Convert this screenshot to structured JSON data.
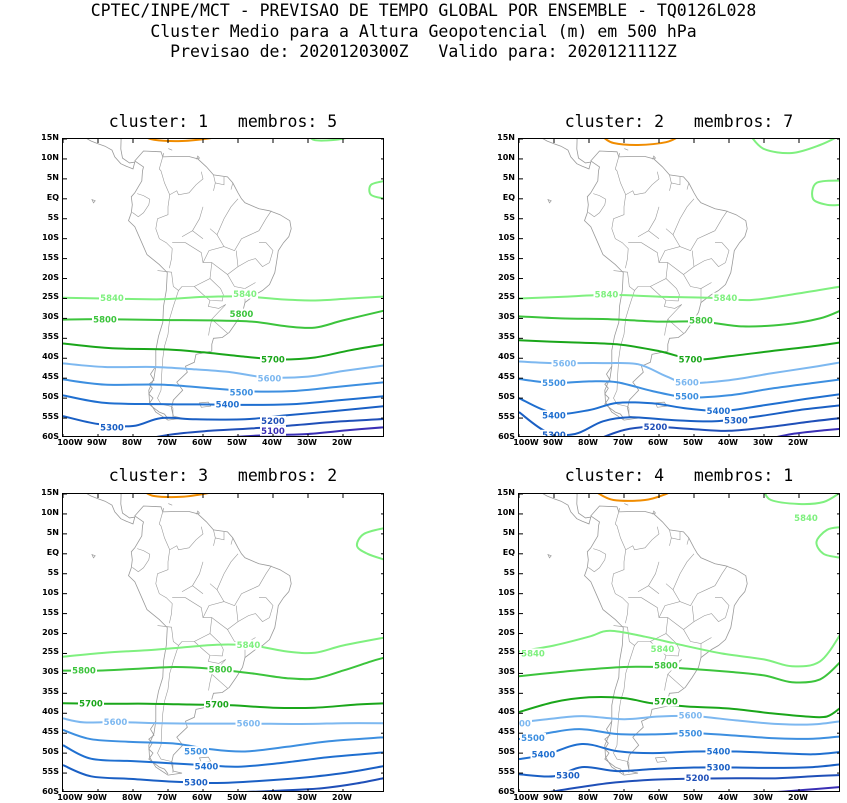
{
  "header": {
    "line1": "CPTEC/INPE/MCT - PREVISAO DE TEMPO GLOBAL POR ENSEMBLE - TQ0126L028",
    "line2": "Cluster Medio para a Altura Geopotencial (m) em 500 hPa",
    "line3": "Previsao de: 2020120300Z   Valido para: 2020121112Z"
  },
  "colors": {
    "c5100": "#3a2fb5",
    "c5200": "#1f4fb8",
    "c5300": "#1a5fc4",
    "c5400": "#1f6fd0",
    "c5500": "#3d8fe0",
    "c5600": "#7db8f0",
    "c5700": "#1aa61a",
    "c5800": "#3cc43c",
    "c5840": "#7ff07f",
    "orange": "#f08c00",
    "coast": "#9a9a9a"
  },
  "y_ticks": [
    "15N",
    "10N",
    "5N",
    "EQ",
    "5S",
    "10S",
    "15S",
    "20S",
    "25S",
    "30S",
    "35S",
    "40S",
    "45S",
    "50S",
    "55S",
    "60S"
  ],
  "x_ticks": [
    "100W",
    "90W",
    "80W",
    "70W",
    "60W",
    "50W",
    "40W",
    "30W",
    "20W"
  ],
  "panels": [
    {
      "title": "cluster: 1   membros: 5",
      "labels": [
        {
          "text": "5840",
          "lon": -86,
          "lat": -24.8,
          "c": "c5840"
        },
        {
          "text": "5840",
          "lon": -48,
          "lat": -23.8,
          "c": "c5840"
        },
        {
          "text": "5800",
          "lon": -88,
          "lat": -30.2,
          "c": "c5800"
        },
        {
          "text": "5800",
          "lon": -49,
          "lat": -28.8,
          "c": "c5800"
        },
        {
          "text": "5700",
          "lon": -40,
          "lat": -40.2,
          "c": "c5700"
        },
        {
          "text": "5600",
          "lon": -41,
          "lat": -45.0,
          "c": "c5600"
        },
        {
          "text": "5500",
          "lon": -49,
          "lat": -48.5,
          "c": "c5500"
        },
        {
          "text": "5400",
          "lon": -53,
          "lat": -51.5,
          "c": "c5400"
        },
        {
          "text": "5300",
          "lon": -86,
          "lat": -57.3,
          "c": "c5300"
        },
        {
          "text": "5200",
          "lon": -40,
          "lat": -55.7,
          "c": "c5200"
        },
        {
          "text": "5100",
          "lon": -40,
          "lat": -58.2,
          "c": "c5100"
        }
      ]
    },
    {
      "title": "cluster: 2   membros: 7",
      "labels": [
        {
          "text": "5840",
          "lon": -75,
          "lat": -24.0,
          "c": "c5840"
        },
        {
          "text": "5840",
          "lon": -41,
          "lat": -24.8,
          "c": "c5840"
        },
        {
          "text": "5800",
          "lon": -48,
          "lat": -30.5,
          "c": "c5800"
        },
        {
          "text": "5700",
          "lon": -51,
          "lat": -40.2,
          "c": "c5700"
        },
        {
          "text": "5600",
          "lon": -87,
          "lat": -41.2,
          "c": "c5600"
        },
        {
          "text": "5600",
          "lon": -52,
          "lat": -46.0,
          "c": "c5600"
        },
        {
          "text": "5500",
          "lon": -90,
          "lat": -46.2,
          "c": "c5500"
        },
        {
          "text": "5500",
          "lon": -52,
          "lat": -49.5,
          "c": "c5500"
        },
        {
          "text": "5400",
          "lon": -90,
          "lat": -54.3,
          "c": "c5400"
        },
        {
          "text": "5400",
          "lon": -43,
          "lat": -53.2,
          "c": "c5400"
        },
        {
          "text": "5300",
          "lon": -90,
          "lat": -59.2,
          "c": "c5300"
        },
        {
          "text": "5300",
          "lon": -38,
          "lat": -55.5,
          "c": "c5300"
        },
        {
          "text": "5200",
          "lon": -61,
          "lat": -57.2,
          "c": "c5200"
        }
      ]
    },
    {
      "title": "cluster: 3   membros: 2",
      "labels": [
        {
          "text": "5840",
          "lon": -47,
          "lat": -22.8,
          "c": "c5840"
        },
        {
          "text": "5800",
          "lon": -94,
          "lat": -29.2,
          "c": "c5800"
        },
        {
          "text": "5800",
          "lon": -55,
          "lat": -29.0,
          "c": "c5800"
        },
        {
          "text": "5700",
          "lon": -92,
          "lat": -37.5,
          "c": "c5700"
        },
        {
          "text": "5700",
          "lon": -56,
          "lat": -37.8,
          "c": "c5700"
        },
        {
          "text": "5600",
          "lon": -85,
          "lat": -42.2,
          "c": "c5600"
        },
        {
          "text": "5600",
          "lon": -47,
          "lat": -42.5,
          "c": "c5600"
        },
        {
          "text": "5500",
          "lon": -62,
          "lat": -49.5,
          "c": "c5500"
        },
        {
          "text": "5400",
          "lon": -59,
          "lat": -53.3,
          "c": "c5400"
        },
        {
          "text": "5300",
          "lon": -62,
          "lat": -57.3,
          "c": "c5300"
        }
      ]
    },
    {
      "title": "cluster: 4   membros: 1",
      "labels": [
        {
          "text": "5840",
          "lon": -18,
          "lat": 9.0,
          "c": "c5840"
        },
        {
          "text": "5840",
          "lon": -96,
          "lat": -25.0,
          "c": "c5840"
        },
        {
          "text": "5840",
          "lon": -59,
          "lat": -23.8,
          "c": "c5840"
        },
        {
          "text": "5800",
          "lon": -58,
          "lat": -28.0,
          "c": "c5800"
        },
        {
          "text": "5700",
          "lon": -58,
          "lat": -37.0,
          "c": "c5700"
        },
        {
          "text": "5600",
          "lon": -100,
          "lat": -42.5,
          "c": "c5600"
        },
        {
          "text": "5600",
          "lon": -51,
          "lat": -40.5,
          "c": "c5600"
        },
        {
          "text": "5500",
          "lon": -96,
          "lat": -46.2,
          "c": "c5500"
        },
        {
          "text": "5500",
          "lon": -51,
          "lat": -45.0,
          "c": "c5500"
        },
        {
          "text": "5400",
          "lon": -93,
          "lat": -50.3,
          "c": "c5400"
        },
        {
          "text": "5400",
          "lon": -43,
          "lat": -49.5,
          "c": "c5400"
        },
        {
          "text": "5300",
          "lon": -86,
          "lat": -55.6,
          "c": "c5300"
        },
        {
          "text": "5300",
          "lon": -43,
          "lat": -53.5,
          "c": "c5300"
        },
        {
          "text": "5200",
          "lon": -49,
          "lat": -56.2,
          "c": "c5200"
        }
      ]
    }
  ]
}
